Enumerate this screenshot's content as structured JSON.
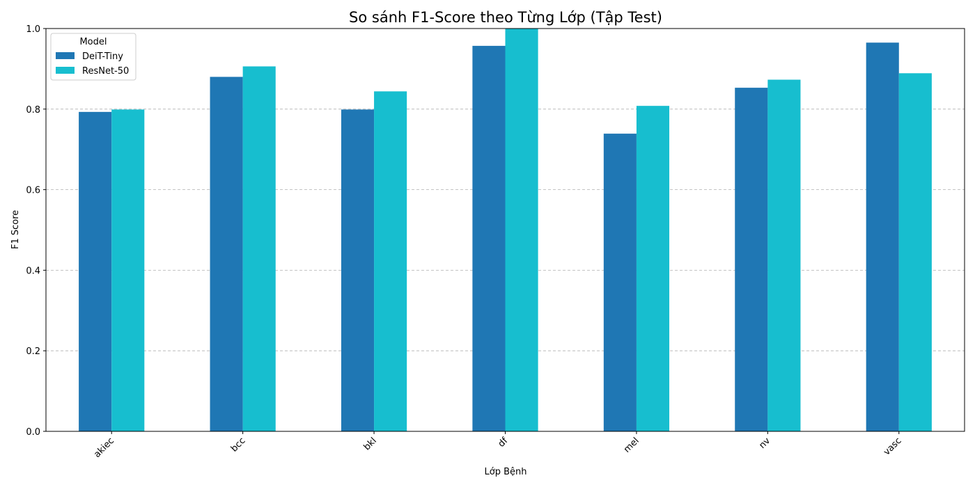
{
  "chart_data": {
    "type": "bar",
    "title": "So sánh F1-Score theo Từng Lớp (Tập Test)",
    "xlabel": "Lớp Bệnh",
    "ylabel": "F1 Score",
    "categories": [
      "akiec",
      "bcc",
      "bkl",
      "df",
      "mel",
      "nv",
      "vasc"
    ],
    "ylim": [
      0,
      1.0
    ],
    "yticks": [
      "0.0",
      "0.2",
      "0.4",
      "0.6",
      "0.8",
      "1.0"
    ],
    "grid": "y-dashed",
    "legend": {
      "title": "Model",
      "placement": "top-left"
    },
    "series": [
      {
        "name": "DeiT-Tiny",
        "color": "#1f77b4",
        "values": [
          0.793,
          0.88,
          0.799,
          0.957,
          0.739,
          0.853,
          0.965
        ]
      },
      {
        "name": "ResNet-50",
        "color": "#17becf",
        "values": [
          0.799,
          0.906,
          0.844,
          1.0,
          0.808,
          0.873,
          0.889
        ]
      }
    ]
  }
}
